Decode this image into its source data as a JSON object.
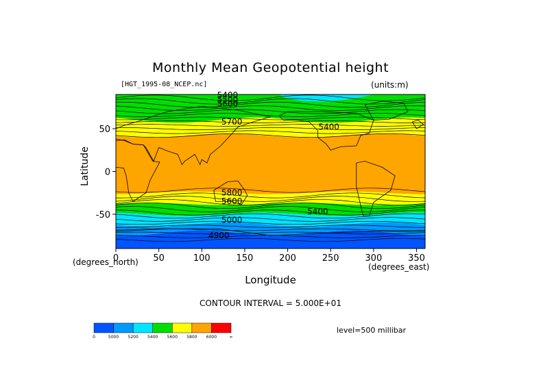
{
  "chart_data": {
    "type": "heatmap",
    "title": "Monthly Mean Geopotential height",
    "file_label": "[HGT_1995-08_NCEP.nc]",
    "units": "(units:m)",
    "xlabel": "Longitude",
    "xlabel_sub": "(degrees_east)",
    "ylabel": "Latitude",
    "ylabel_sub": "(degrees_north)",
    "xlim": [
      0,
      360
    ],
    "ylim": [
      -90,
      90
    ],
    "x_ticks": [
      0,
      50,
      100,
      150,
      200,
      250,
      300,
      350
    ],
    "y_ticks": [
      50,
      0,
      -50
    ],
    "contour_interval": "CONTOUR INTERVAL = 5.000E+01",
    "level": "level=500 millibar",
    "colorbar_labels": [
      "0",
      "5000",
      "5200",
      "5400",
      "5600",
      "5800",
      "6000",
      "∞"
    ],
    "colorbar_colors": [
      "#0055ff",
      "#0099ff",
      "#00e5ff",
      "#00dd00",
      "#ffff00",
      "#ffa500",
      "#ff0000"
    ],
    "contour_labels": [
      "5400",
      "5500",
      "5600",
      "5700",
      "5400",
      "5800",
      "5600",
      "5400",
      "5000",
      "4900"
    ],
    "bands_by_latitude": [
      {
        "lat_from": 90,
        "lat_to": 82,
        "value_range": "5400-5600",
        "color": "#00dd00"
      },
      {
        "lat_from": 82,
        "lat_to": 60,
        "value_range": "5400-5600",
        "color": "#00dd00"
      },
      {
        "lat_from": 60,
        "lat_to": 42,
        "value_range": "5600-5800",
        "color": "#ffff00"
      },
      {
        "lat_from": 42,
        "lat_to": -25,
        "value_range": "5800-6000",
        "color": "#ffa500"
      },
      {
        "lat_from": -25,
        "lat_to": -38,
        "value_range": "5600-5800",
        "color": "#ffff00"
      },
      {
        "lat_from": -38,
        "lat_to": -50,
        "value_range": "5400-5600",
        "color": "#00dd00"
      },
      {
        "lat_from": -50,
        "lat_to": -62,
        "value_range": "5200-5400",
        "color": "#00e5ff"
      },
      {
        "lat_from": -62,
        "lat_to": -72,
        "value_range": "5000-5200",
        "color": "#0099ff"
      },
      {
        "lat_from": -72,
        "lat_to": -90,
        "value_range": "0-5000",
        "color": "#0055ff"
      }
    ]
  }
}
